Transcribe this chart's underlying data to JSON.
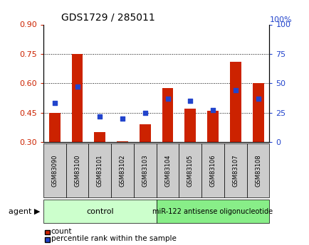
{
  "title": "GDS1729 / 285011",
  "samples": [
    "GSM83090",
    "GSM83100",
    "GSM83101",
    "GSM83102",
    "GSM83103",
    "GSM83104",
    "GSM83105",
    "GSM83106",
    "GSM83107",
    "GSM83108"
  ],
  "count_values": [
    0.45,
    0.75,
    0.35,
    0.305,
    0.39,
    0.575,
    0.47,
    0.46,
    0.71,
    0.6
  ],
  "percentile_values": [
    33,
    47,
    22,
    20,
    25,
    37,
    35,
    27,
    44,
    37
  ],
  "ylim_left": [
    0.3,
    0.9
  ],
  "ylim_right": [
    0,
    100
  ],
  "yticks_left": [
    0.3,
    0.45,
    0.6,
    0.75,
    0.9
  ],
  "yticks_right": [
    0,
    25,
    50,
    75,
    100
  ],
  "bar_color": "#cc2200",
  "dot_color": "#2244cc",
  "n_control": 5,
  "n_treatment": 5,
  "control_label": "control",
  "treatment_label": "miR-122 antisense oligonucleotide",
  "legend_count": "count",
  "legend_percentile": "percentile rank within the sample",
  "agent_label": "agent",
  "control_color": "#ccffcc",
  "treatment_color": "#88ee88",
  "tick_label_bg": "#cccccc",
  "grid_dotted_at": [
    0.45,
    0.6,
    0.75
  ],
  "bar_width": 0.5
}
